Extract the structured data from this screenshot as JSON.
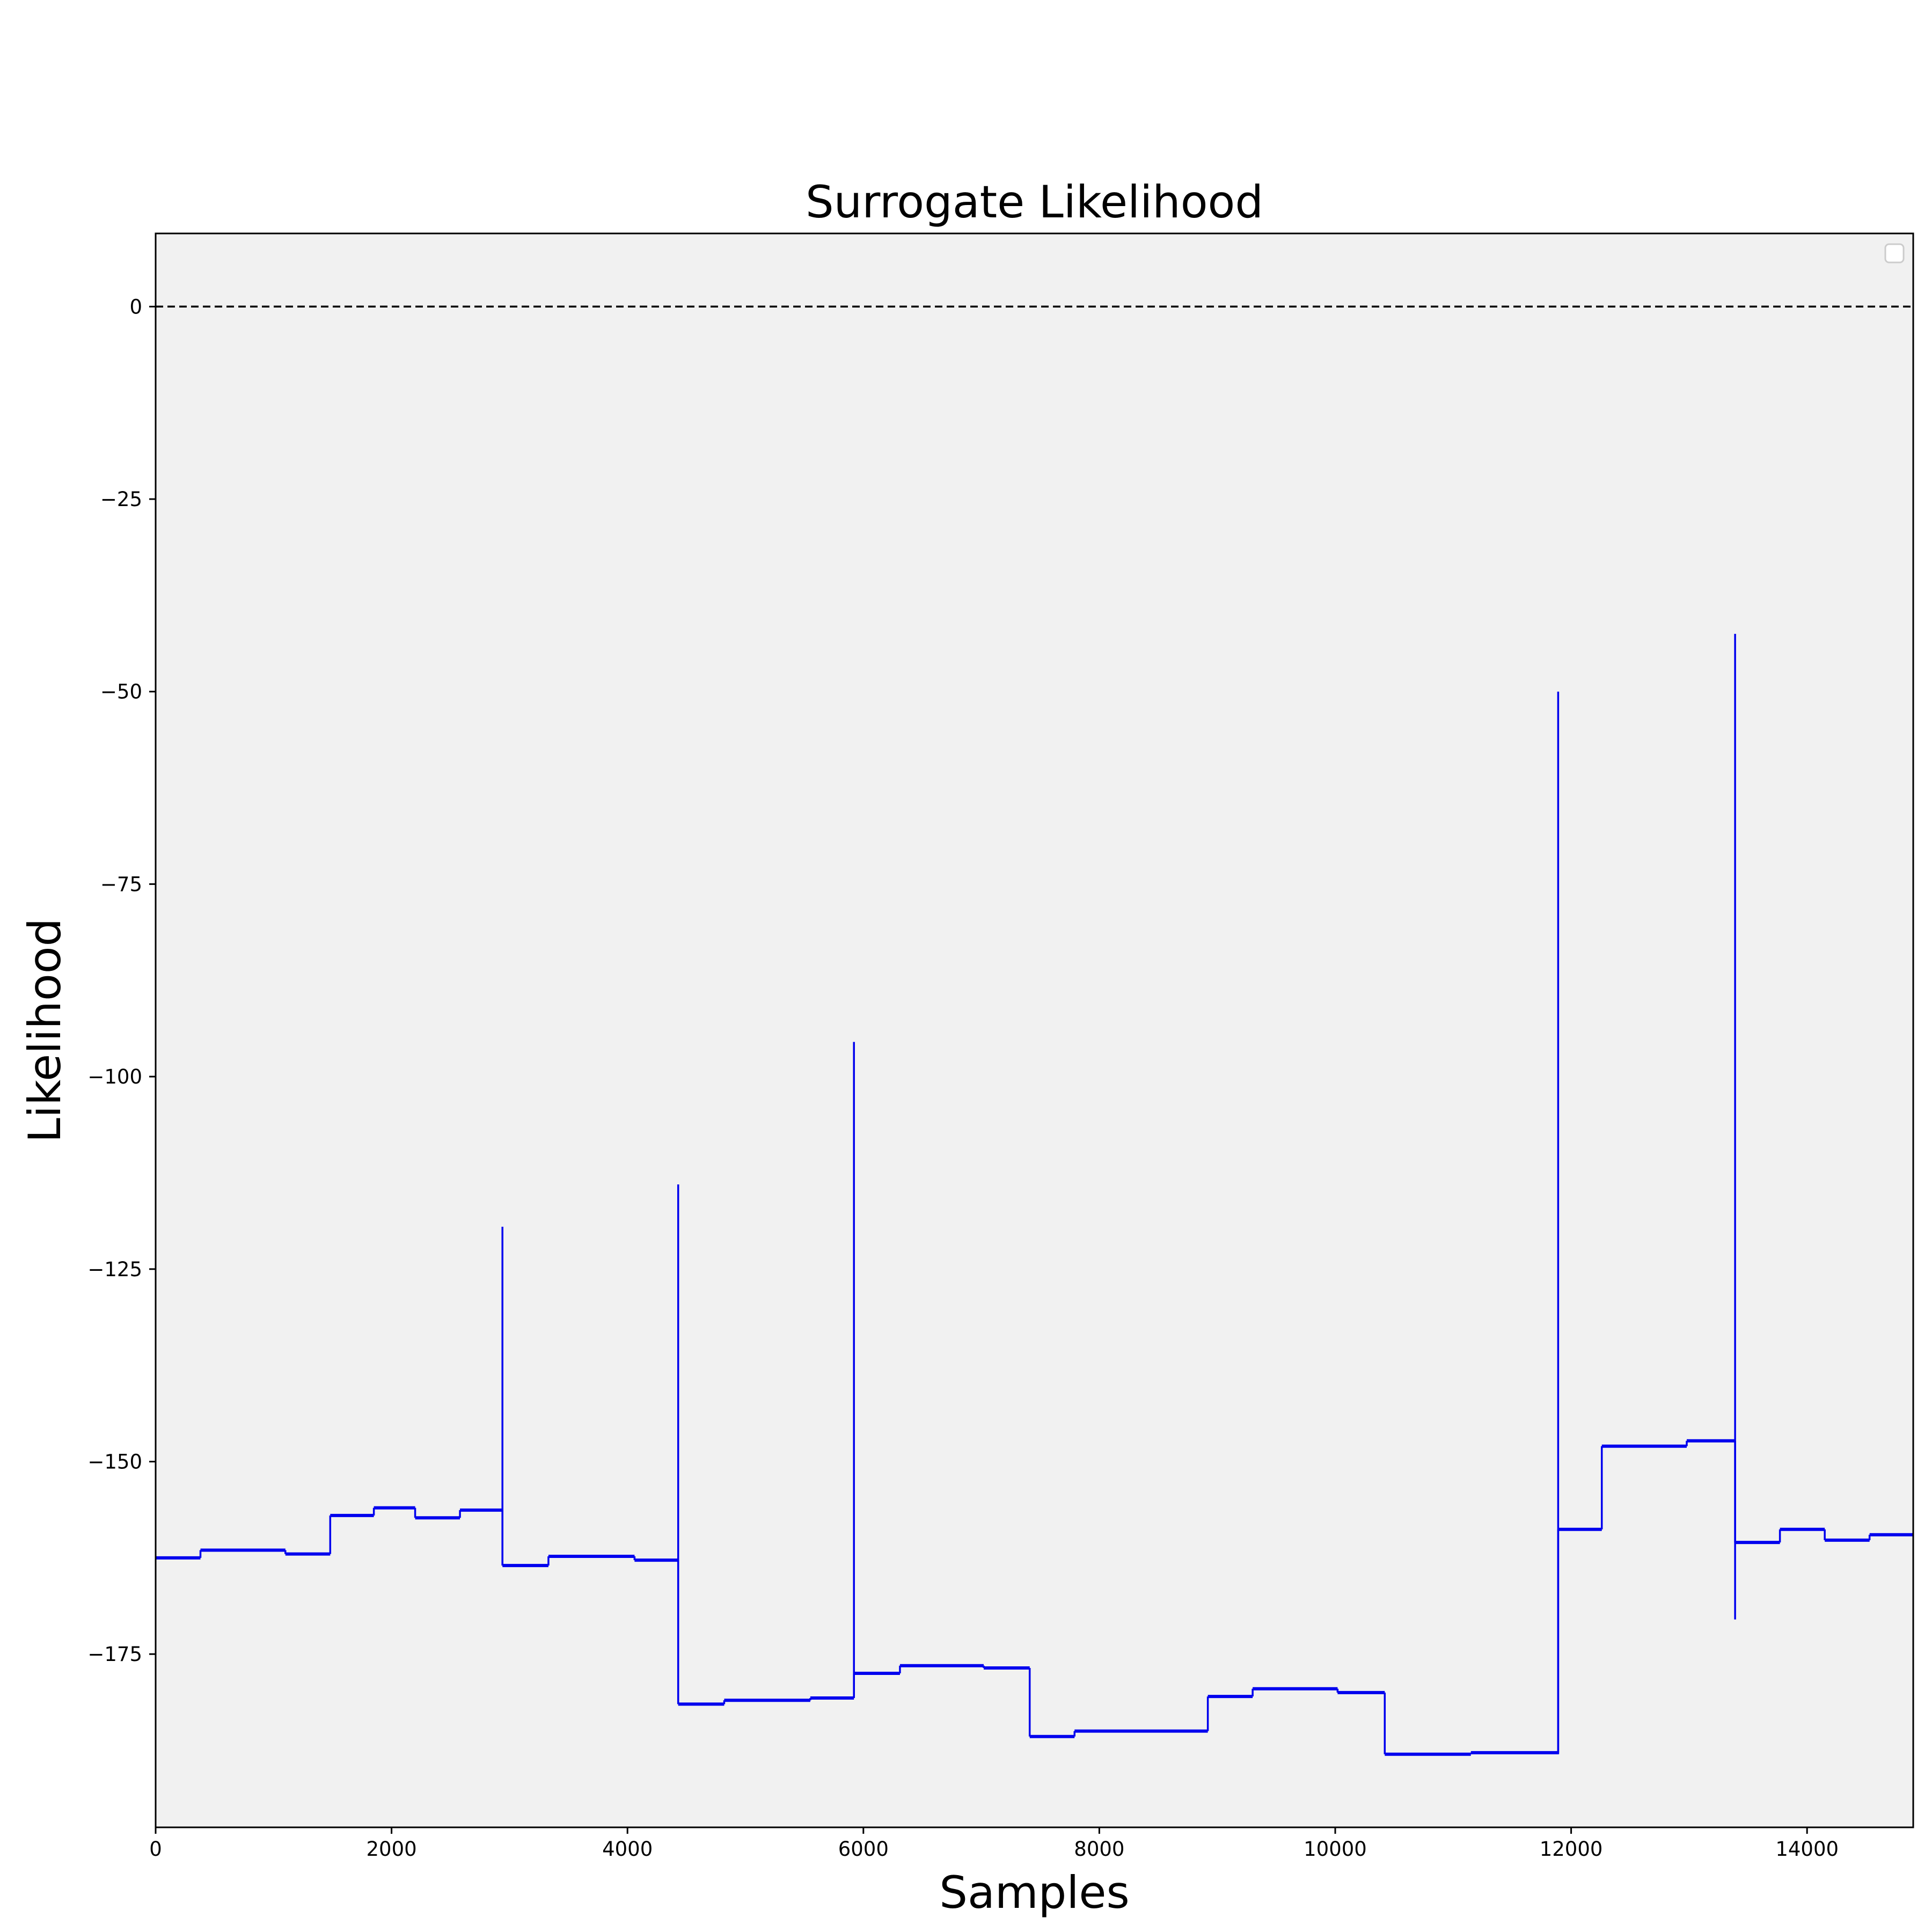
{
  "chart_data": {
    "type": "line",
    "title": "Surrogate  Likelihood",
    "xlabel": "Samples",
    "ylabel": "Likelihood",
    "xlim": [
      0,
      14900
    ],
    "ylim": [
      -197.5,
      9.5
    ],
    "xticks": [
      0,
      2000,
      4000,
      6000,
      8000,
      10000,
      12000,
      14000
    ],
    "xtick_labels": [
      "0",
      "2000",
      "4000",
      "6000",
      "8000",
      "10000",
      "12000",
      "14000"
    ],
    "yticks": [
      0,
      -25,
      -50,
      -75,
      -100,
      -125,
      -150,
      -175
    ],
    "ytick_labels": [
      "0",
      "−25",
      "−50",
      "−75",
      "−100",
      "−125",
      "−150",
      "−175"
    ],
    "grid": false,
    "legend": "top-right (empty)",
    "colors": {
      "series": "#0000ee",
      "reference": "#000000",
      "plot_bg": "#f1f1f1"
    },
    "reference_line": {
      "y": 0,
      "style": "dashed"
    },
    "series": [
      {
        "color": "#0000ee",
        "segments": [
          {
            "x": [
              0,
              380
            ],
            "y": -162.5
          },
          {
            "x": [
              380,
              1100
            ],
            "y": -161.5
          },
          {
            "x": [
              1100,
              1480
            ],
            "y": -162.0
          },
          {
            "x": [
              1480,
              1850
            ],
            "y": -157.0
          },
          {
            "x": [
              1850,
              2200
            ],
            "y": -156.0
          },
          {
            "x": [
              2200,
              2580
            ],
            "y": -157.3
          },
          {
            "x": [
              2580,
              2940
            ],
            "y": -156.3
          },
          {
            "x": [
              2940,
              3330
            ],
            "y": -163.5
          },
          {
            "x": [
              3330,
              4060
            ],
            "y": -162.3
          },
          {
            "x": [
              4060,
              4430
            ],
            "y": -162.8
          },
          {
            "x": [
              4430,
              4820
            ],
            "y": -181.5
          },
          {
            "x": [
              4820,
              5550
            ],
            "y": -181.0
          },
          {
            "x": [
              5550,
              5920
            ],
            "y": -180.7
          },
          {
            "x": [
              5920,
              6310
            ],
            "y": -177.5
          },
          {
            "x": [
              6310,
              7020
            ],
            "y": -176.5
          },
          {
            "x": [
              7020,
              7410
            ],
            "y": -176.8
          },
          {
            "x": [
              7410,
              7790
            ],
            "y": -185.7
          },
          {
            "x": [
              7790,
              8920
            ],
            "y": -185.0
          },
          {
            "x": [
              8920,
              9300
            ],
            "y": -180.5
          },
          {
            "x": [
              9300,
              10020
            ],
            "y": -179.5
          },
          {
            "x": [
              10020,
              10420
            ],
            "y": -180.0
          },
          {
            "x": [
              10420,
              11150
            ],
            "y": -188.0
          },
          {
            "x": [
              11150,
              11890
            ],
            "y": -187.8
          },
          {
            "x": [
              11890,
              12260
            ],
            "y": -158.8
          },
          {
            "x": [
              12260,
              12980
            ],
            "y": -148.0
          },
          {
            "x": [
              12980,
              13390
            ],
            "y": -147.3
          },
          {
            "x": [
              13390,
              13770
            ],
            "y": -160.5
          },
          {
            "x": [
              13770,
              14150
            ],
            "y": -158.8
          },
          {
            "x": [
              14150,
              14530
            ],
            "y": -160.2
          },
          {
            "x": [
              14530,
              14900
            ],
            "y": -159.5
          }
        ],
        "spikes": [
          {
            "x": 2940,
            "from": -163.5,
            "to": -119.5
          },
          {
            "x": 4430,
            "from": -181.5,
            "to": -114.0
          },
          {
            "x": 5920,
            "from": -180.7,
            "to": -95.5
          },
          {
            "x": 11890,
            "from": -188.0,
            "to": -50.0
          },
          {
            "x": 13390,
            "from": -170.5,
            "to": -42.5
          }
        ]
      }
    ]
  }
}
